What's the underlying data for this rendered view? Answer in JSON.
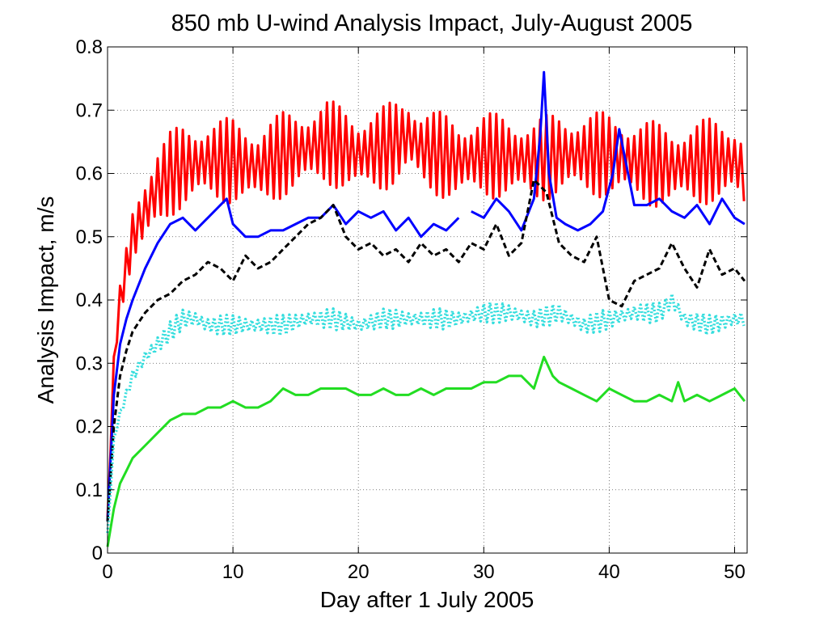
{
  "chart_data": {
    "type": "line",
    "title": "850 mb U-wind Analysis Impact, July-August 2005",
    "xlabel": "Day after 1 July 2005",
    "ylabel": "Analysis Impact, m/s",
    "xlim": [
      0,
      51
    ],
    "ylim": [
      0,
      0.8
    ],
    "xticks": [
      0,
      10,
      20,
      30,
      40,
      50
    ],
    "yticks": [
      0,
      0.1,
      0.2,
      0.3,
      0.4,
      0.5,
      0.6,
      0.7,
      0.8
    ],
    "xtick_labels": [
      "0",
      "10",
      "20",
      "30",
      "40",
      "50"
    ],
    "ytick_labels": [
      "0",
      "0.1",
      "0.2",
      "0.3",
      "0.4",
      "0.5",
      "0.6",
      "0.7",
      "0.8"
    ],
    "grid": true,
    "series": [
      {
        "color": "#ff0000",
        "line_style": "solid",
        "oscillation": 0.05,
        "x": [
          0,
          0.5,
          1,
          1.5,
          2,
          3,
          4,
          5,
          6,
          8,
          10,
          12,
          14,
          16,
          17.5,
          20,
          22,
          24,
          25,
          28,
          30,
          34,
          36,
          40,
          42,
          45,
          48,
          50,
          50.8
        ],
        "y": [
          0.05,
          0.3,
          0.4,
          0.45,
          0.5,
          0.54,
          0.58,
          0.6,
          0.61,
          0.62,
          0.62,
          0.61,
          0.63,
          0.64,
          0.65,
          0.63,
          0.64,
          0.66,
          0.64,
          0.62,
          0.63,
          0.62,
          0.63,
          0.63,
          0.62,
          0.61,
          0.62,
          0.62,
          0.6
        ]
      },
      {
        "color": "#0000ff",
        "line_style": "solid",
        "x": [
          0,
          0.5,
          1,
          1.5,
          2,
          3,
          4,
          5,
          6,
          7,
          8,
          9,
          9.5,
          10,
          11,
          12,
          13,
          14,
          15,
          16,
          17,
          18,
          19,
          20,
          21,
          22,
          23,
          24,
          25,
          26,
          27,
          28,
          null,
          29,
          30,
          31,
          32,
          33,
          34,
          34.5,
          34.8,
          35.2,
          35.8,
          36.5,
          37.5,
          38.5,
          39.5,
          40.3,
          40.8,
          41.3,
          42,
          43,
          44,
          45,
          46,
          47,
          48,
          49,
          50,
          50.8
        ],
        "y": [
          0.05,
          0.25,
          0.33,
          0.37,
          0.4,
          0.45,
          0.49,
          0.52,
          0.53,
          0.51,
          0.53,
          0.55,
          0.56,
          0.52,
          0.5,
          0.5,
          0.51,
          0.51,
          0.52,
          0.53,
          0.53,
          0.55,
          0.52,
          0.54,
          0.53,
          0.54,
          0.51,
          0.53,
          0.5,
          0.52,
          0.51,
          0.53,
          null,
          0.54,
          0.53,
          0.56,
          0.54,
          0.51,
          0.56,
          0.66,
          0.76,
          0.6,
          0.53,
          0.52,
          0.51,
          0.52,
          0.54,
          0.6,
          0.67,
          0.62,
          0.55,
          0.55,
          0.56,
          0.54,
          0.53,
          0.55,
          0.52,
          0.56,
          0.53,
          0.52
        ]
      },
      {
        "color": "#000000",
        "line_style": "dashed",
        "x": [
          0,
          0.5,
          1,
          1.5,
          2,
          3,
          4,
          5,
          6,
          7,
          8,
          9,
          10,
          11,
          12,
          13,
          14,
          15,
          16,
          17,
          18,
          19,
          20,
          21,
          22,
          23,
          24,
          25,
          26,
          27,
          28,
          29,
          30,
          31,
          32,
          33,
          34,
          35,
          36,
          37,
          38,
          39,
          40,
          41,
          42,
          43,
          44,
          45,
          46,
          47,
          48,
          49,
          50,
          50.8
        ],
        "y": [
          0.05,
          0.2,
          0.28,
          0.32,
          0.35,
          0.38,
          0.4,
          0.41,
          0.43,
          0.44,
          0.46,
          0.45,
          0.43,
          0.47,
          0.45,
          0.46,
          0.48,
          0.5,
          0.52,
          0.53,
          0.55,
          0.5,
          0.48,
          0.49,
          0.47,
          0.48,
          0.46,
          0.49,
          0.47,
          0.48,
          0.46,
          0.49,
          0.48,
          0.52,
          0.47,
          0.49,
          0.59,
          0.57,
          0.49,
          0.47,
          0.46,
          0.5,
          0.4,
          0.39,
          0.43,
          0.44,
          0.45,
          0.49,
          0.45,
          0.42,
          0.48,
          0.44,
          0.45,
          0.43
        ]
      },
      {
        "color": "#33dddd",
        "line_style": "dotted",
        "oscillation": 0.012,
        "x": [
          0,
          0.5,
          1,
          1.5,
          2,
          3,
          4,
          5,
          6,
          7,
          8,
          10,
          12,
          14,
          16,
          18,
          20,
          22,
          24,
          26,
          28,
          30,
          32,
          34,
          36,
          38,
          40,
          42,
          44,
          45,
          46,
          48,
          50,
          50.8
        ],
        "y": [
          0.03,
          0.18,
          0.22,
          0.25,
          0.28,
          0.31,
          0.33,
          0.35,
          0.37,
          0.37,
          0.36,
          0.36,
          0.36,
          0.36,
          0.37,
          0.37,
          0.36,
          0.37,
          0.37,
          0.37,
          0.37,
          0.38,
          0.38,
          0.37,
          0.38,
          0.36,
          0.37,
          0.38,
          0.38,
          0.4,
          0.37,
          0.36,
          0.37,
          0.37
        ]
      },
      {
        "color": "#22dd22",
        "line_style": "solid",
        "x": [
          0,
          0.5,
          1,
          1.5,
          2,
          3,
          4,
          5,
          6,
          7,
          8,
          9,
          10,
          11,
          12,
          13,
          14,
          15,
          16,
          17,
          18,
          19,
          20,
          21,
          22,
          23,
          24,
          25,
          26,
          27,
          28,
          29,
          30,
          31,
          32,
          33,
          34,
          34.8,
          35.5,
          36,
          37,
          38,
          39,
          40,
          41,
          42,
          43,
          44,
          45,
          45.5,
          46,
          47,
          48,
          49,
          50,
          50.8
        ],
        "y": [
          0.01,
          0.07,
          0.11,
          0.13,
          0.15,
          0.17,
          0.19,
          0.21,
          0.22,
          0.22,
          0.23,
          0.23,
          0.24,
          0.23,
          0.23,
          0.24,
          0.26,
          0.25,
          0.25,
          0.26,
          0.26,
          0.26,
          0.25,
          0.25,
          0.26,
          0.25,
          0.25,
          0.26,
          0.25,
          0.26,
          0.26,
          0.26,
          0.27,
          0.27,
          0.28,
          0.28,
          0.26,
          0.31,
          0.28,
          0.27,
          0.26,
          0.25,
          0.24,
          0.26,
          0.25,
          0.24,
          0.24,
          0.25,
          0.24,
          0.27,
          0.24,
          0.25,
          0.24,
          0.25,
          0.26,
          0.24
        ]
      }
    ]
  }
}
